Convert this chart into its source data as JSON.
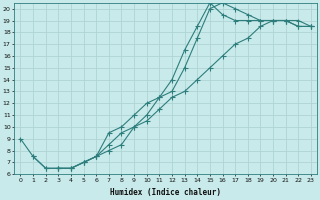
{
  "xlabel": "Humidex (Indice chaleur)",
  "bg_color": "#c9eaea",
  "grid_color": "#afd4d4",
  "line_color": "#2e7d7d",
  "xlim": [
    -0.5,
    23.5
  ],
  "ylim": [
    6,
    20.5
  ],
  "xticks": [
    0,
    1,
    2,
    3,
    4,
    5,
    6,
    7,
    8,
    9,
    10,
    11,
    12,
    13,
    14,
    15,
    16,
    17,
    18,
    19,
    20,
    21,
    22,
    23
  ],
  "yticks": [
    6,
    7,
    8,
    9,
    10,
    11,
    12,
    13,
    14,
    15,
    16,
    17,
    18,
    19,
    20
  ],
  "line1_x": [
    0,
    1,
    2,
    3,
    4,
    5,
    6,
    7,
    8,
    9,
    10,
    11,
    12,
    13,
    14,
    15,
    16,
    17,
    18,
    19,
    20,
    21,
    22,
    23
  ],
  "line1_y": [
    9.0,
    7.5,
    6.5,
    6.5,
    6.5,
    7.0,
    7.5,
    8.5,
    9.5,
    10.0,
    10.5,
    11.5,
    12.5,
    13.0,
    14.0,
    15.0,
    16.0,
    17.0,
    17.5,
    18.5,
    19.0,
    19.0,
    18.5,
    18.5
  ],
  "line2_x": [
    1,
    2,
    3,
    4,
    5,
    6,
    7,
    8,
    9,
    10,
    11,
    12,
    13,
    14,
    15,
    16,
    17,
    18,
    19,
    20,
    21,
    22,
    23
  ],
  "line2_y": [
    7.5,
    6.5,
    6.5,
    6.5,
    7.0,
    7.5,
    8.0,
    8.5,
    10.0,
    11.0,
    12.5,
    13.0,
    15.0,
    17.5,
    20.0,
    20.5,
    20.0,
    19.5,
    19.0,
    19.0,
    19.0,
    18.5,
    18.5
  ],
  "line3_x": [
    3,
    4,
    5,
    6,
    7,
    8,
    9,
    10,
    11,
    12,
    13,
    14,
    15,
    16,
    17,
    18,
    19,
    20,
    21,
    22,
    23
  ],
  "line3_y": [
    6.5,
    6.5,
    7.0,
    7.5,
    9.5,
    10.0,
    11.0,
    12.0,
    12.5,
    14.0,
    16.5,
    18.5,
    20.5,
    19.5,
    19.0,
    19.0,
    19.0,
    19.0,
    19.0,
    19.0,
    18.5
  ]
}
